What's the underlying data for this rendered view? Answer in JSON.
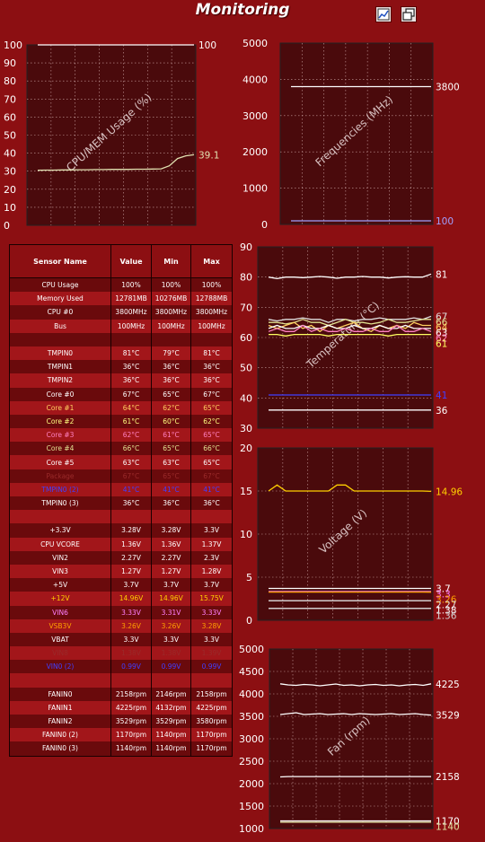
{
  "window": {
    "title": "Monitoring",
    "buttons": [
      {
        "name": "chart-view-button",
        "icon": "line-chart-icon"
      },
      {
        "name": "restore-window-button",
        "icon": "restore-window-icon"
      }
    ]
  },
  "colors": {
    "background": "#8c0f12",
    "plot_bg": "#4a0a0c",
    "row_dark": "#6a0a0c",
    "row_light": "#a2161a"
  },
  "table": {
    "headers": [
      "Sensor Name",
      "Value",
      "Min",
      "Max"
    ],
    "rows": [
      {
        "name": "CPU Usage",
        "value": "100%",
        "min": "100%",
        "max": "100%",
        "color": "#ffffff"
      },
      {
        "name": "Memory Used",
        "value": "12781MB",
        "min": "10276MB",
        "max": "12788MB",
        "color": "#ffffff"
      },
      {
        "name": "CPU #0",
        "value": "3800MHz",
        "min": "3800MHz",
        "max": "3800MHz",
        "color": "#ffffff"
      },
      {
        "name": "Bus",
        "value": "100MHz",
        "min": "100MHz",
        "max": "100MHz",
        "color": "#ffffff"
      },
      {
        "name": "",
        "value": "",
        "min": "",
        "max": "",
        "color": "#ffffff"
      },
      {
        "name": "TMPIN0",
        "value": "81°C",
        "min": "79°C",
        "max": "81°C",
        "color": "#ffffff"
      },
      {
        "name": "TMPIN1",
        "value": "36°C",
        "min": "36°C",
        "max": "36°C",
        "color": "#ffffff"
      },
      {
        "name": "TMPIN2",
        "value": "36°C",
        "min": "36°C",
        "max": "36°C",
        "color": "#ffffff"
      },
      {
        "name": "Core #0",
        "value": "67°C",
        "min": "65°C",
        "max": "67°C",
        "color": "#ffffff"
      },
      {
        "name": "Core #1",
        "value": "64°C",
        "min": "62°C",
        "max": "65°C",
        "color": "#ffd060"
      },
      {
        "name": "Core #2",
        "value": "61°C",
        "min": "60°C",
        "max": "62°C",
        "color": "#ffff80"
      },
      {
        "name": "Core #3",
        "value": "62°C",
        "min": "61°C",
        "max": "65°C",
        "color": "#ff80c0"
      },
      {
        "name": "Core #4",
        "value": "66°C",
        "min": "65°C",
        "max": "66°C",
        "color": "#e0e090"
      },
      {
        "name": "Core #5",
        "value": "63°C",
        "min": "63°C",
        "max": "65°C",
        "color": "#ffffff"
      },
      {
        "name": "Package",
        "value": "67°C",
        "min": "65°C",
        "max": "67°C",
        "color": "#9a2a2a"
      },
      {
        "name": "TMPIN0 (2)",
        "value": "41°C",
        "min": "41°C",
        "max": "41°C",
        "color": "#4040ff"
      },
      {
        "name": "TMPIN0 (3)",
        "value": "36°C",
        "min": "36°C",
        "max": "36°C",
        "color": "#ffffff"
      },
      {
        "name": "",
        "value": "",
        "min": "",
        "max": "",
        "color": "#ffffff"
      },
      {
        "name": "+3.3V",
        "value": "3.28V",
        "min": "3.28V",
        "max": "3.3V",
        "color": "#ffffff"
      },
      {
        "name": "CPU VCORE",
        "value": "1.36V",
        "min": "1.36V",
        "max": "1.37V",
        "color": "#ffffff"
      },
      {
        "name": "VIN2",
        "value": "2.27V",
        "min": "2.27V",
        "max": "2.3V",
        "color": "#ffffff"
      },
      {
        "name": "VIN3",
        "value": "1.27V",
        "min": "1.27V",
        "max": "1.28V",
        "color": "#ffffff"
      },
      {
        "name": "+5V",
        "value": "3.7V",
        "min": "3.7V",
        "max": "3.7V",
        "color": "#ffffff"
      },
      {
        "name": "+12V",
        "value": "14.96V",
        "min": "14.96V",
        "max": "15.75V",
        "color": "#ffd000"
      },
      {
        "name": "VIN6",
        "value": "3.33V",
        "min": "3.31V",
        "max": "3.33V",
        "color": "#ff80ff"
      },
      {
        "name": "VSB3V",
        "value": "3.26V",
        "min": "3.26V",
        "max": "3.28V",
        "color": "#ffa000"
      },
      {
        "name": "VBAT",
        "value": "3.3V",
        "min": "3.3V",
        "max": "3.3V",
        "color": "#ffffff"
      },
      {
        "name": "VIN8",
        "value": "1.38V",
        "min": "1.38V",
        "max": "1.39V",
        "color": "#9a2a2a"
      },
      {
        "name": "VIN0 (2)",
        "value": "0.99V",
        "min": "0.99V",
        "max": "0.99V",
        "color": "#4040ff"
      },
      {
        "name": "",
        "value": "",
        "min": "",
        "max": "",
        "color": "#ffffff"
      },
      {
        "name": "FANIN0",
        "value": "2158rpm",
        "min": "2146rpm",
        "max": "2158rpm",
        "color": "#ffffff"
      },
      {
        "name": "FANIN1",
        "value": "4225rpm",
        "min": "4132rpm",
        "max": "4225rpm",
        "color": "#ffffff"
      },
      {
        "name": "FANIN2",
        "value": "3529rpm",
        "min": "3529rpm",
        "max": "3580rpm",
        "color": "#ffffff"
      },
      {
        "name": "FANIN0 (2)",
        "value": "1170rpm",
        "min": "1140rpm",
        "max": "1170rpm",
        "color": "#ffffff"
      },
      {
        "name": "FANIN0 (3)",
        "value": "1140rpm",
        "min": "1140rpm",
        "max": "1170rpm",
        "color": "#ffffff"
      }
    ]
  },
  "chart_data": [
    {
      "id": "cpu-mem",
      "type": "line",
      "title": "CPU/MEM Usage (%)",
      "ylim": [
        0,
        100
      ],
      "yticks": [
        "0",
        "10",
        "20",
        "30",
        "40",
        "50",
        "60",
        "70",
        "80",
        "90",
        "100"
      ],
      "grid": true,
      "series": [
        {
          "color": "#ffffff",
          "values": [
            100,
            100,
            100,
            100,
            100,
            100,
            100,
            100,
            100,
            100,
            100,
            100,
            100,
            100,
            100,
            100,
            100,
            100,
            100,
            100
          ],
          "end_label": "100"
        },
        {
          "color": "#e0e0b0",
          "values": [
            30.5,
            30.6,
            30.6,
            30.7,
            30.7,
            30.8,
            30.8,
            30.9,
            30.9,
            31,
            31,
            31,
            31.1,
            31.1,
            31.2,
            31.3,
            33,
            37,
            38.5,
            39.1
          ],
          "end_label": "39.1"
        }
      ]
    },
    {
      "id": "frequencies",
      "type": "line",
      "title": "Frequencies (MHz)",
      "ylim": [
        0,
        5000
      ],
      "yticks": [
        "0",
        "1000",
        "2000",
        "3000",
        "4000",
        "5000"
      ],
      "grid": true,
      "series": [
        {
          "color": "#ffffff",
          "values": [
            3800,
            3800,
            3800,
            3800,
            3800,
            3800,
            3800,
            3800,
            3800,
            3800,
            3800,
            3800,
            3800,
            3800,
            3800,
            3800,
            3800,
            3800,
            3800,
            3800
          ],
          "end_label": "3800"
        },
        {
          "color": "#a0a0ff",
          "values": [
            100,
            100,
            100,
            100,
            100,
            100,
            100,
            100,
            100,
            100,
            100,
            100,
            100,
            100,
            100,
            100,
            100,
            100,
            100,
            100
          ],
          "end_label": "100"
        }
      ]
    },
    {
      "id": "temperature",
      "type": "line",
      "title": "Temperature (°C)",
      "ylim": [
        30,
        90
      ],
      "yticks": [
        "30",
        "40",
        "50",
        "60",
        "70",
        "80",
        "90"
      ],
      "grid": true,
      "series": [
        {
          "color": "#ffffff",
          "values": [
            80,
            79.5,
            80,
            80,
            79.8,
            80,
            80.2,
            80,
            79.6,
            80,
            80,
            80.2,
            80,
            80,
            79.7,
            80,
            80.1,
            80,
            80,
            81
          ],
          "end_label": "81"
        },
        {
          "color": "#e0e0e0",
          "values": [
            66,
            65.5,
            66,
            66,
            66.5,
            66,
            66,
            65,
            66,
            66,
            65.5,
            66,
            66,
            66.5,
            66,
            66,
            66,
            66.5,
            66,
            67
          ],
          "end_label": "67"
        },
        {
          "color": "#e0e090",
          "values": [
            65,
            65,
            64.5,
            65,
            66,
            65,
            65,
            64,
            65,
            66,
            65,
            65,
            64.5,
            65,
            66,
            65,
            65,
            65.5,
            66,
            66
          ],
          "end_label": "66"
        },
        {
          "color": "#ffd060",
          "values": [
            64,
            63,
            64,
            65,
            63,
            64,
            62,
            64,
            63,
            64,
            65,
            63,
            62,
            64,
            63,
            64,
            63,
            65,
            64,
            64
          ],
          "end_label": "64"
        },
        {
          "color": "#ffffff",
          "values": [
            63,
            64,
            63,
            63,
            64,
            63,
            63,
            64,
            63,
            63,
            64,
            63,
            63,
            64,
            63,
            63,
            64,
            63,
            63,
            63
          ],
          "end_label": "63"
        },
        {
          "color": "#ff80c0",
          "values": [
            62,
            63,
            62,
            62,
            64,
            62,
            63,
            62,
            62,
            63,
            62,
            62,
            63,
            62,
            62,
            64,
            62,
            62,
            63,
            62
          ],
          "end_label": "62"
        },
        {
          "color": "#ffff60",
          "values": [
            61,
            61,
            60.5,
            61,
            61,
            61,
            61,
            60.5,
            61,
            61,
            61,
            61,
            61,
            61,
            60.5,
            61,
            61,
            61,
            61,
            61
          ],
          "end_label": "61"
        },
        {
          "color": "#4040ff",
          "values": [
            41,
            41,
            41,
            41,
            41,
            41,
            41,
            41,
            41,
            41,
            41,
            41,
            41,
            41,
            41,
            41,
            41,
            41,
            41,
            41
          ],
          "end_label": "41"
        },
        {
          "color": "#ffffff",
          "values": [
            36,
            36,
            36,
            36,
            36,
            36,
            36,
            36,
            36,
            36,
            36,
            36,
            36,
            36,
            36,
            36,
            36,
            36,
            36,
            36
          ],
          "end_label": "36"
        }
      ]
    },
    {
      "id": "voltage",
      "type": "line",
      "title": "Voltage (V)",
      "ylim": [
        0,
        20
      ],
      "yticks": [
        "0",
        "5",
        "10",
        "15",
        "20"
      ],
      "grid": true,
      "series": [
        {
          "color": "#ffd000",
          "values": [
            15,
            15.7,
            15,
            15,
            15,
            15,
            15,
            15,
            15.7,
            15.7,
            15,
            15,
            15,
            15,
            15,
            15,
            15,
            15,
            15,
            14.96
          ],
          "end_label": "14.96"
        },
        {
          "color": "#ffffff",
          "values": [
            3.7,
            3.7,
            3.7,
            3.7,
            3.7,
            3.7,
            3.7,
            3.7,
            3.7,
            3.7,
            3.7,
            3.7,
            3.7,
            3.7,
            3.7,
            3.7,
            3.7,
            3.7,
            3.7,
            3.7
          ],
          "end_label": "3.7"
        },
        {
          "color": "#ff80ff",
          "values": [
            3.33,
            3.33,
            3.33,
            3.33,
            3.33,
            3.33,
            3.33,
            3.33,
            3.33,
            3.33,
            3.33,
            3.33,
            3.33,
            3.33,
            3.33,
            3.33,
            3.33,
            3.33,
            3.33,
            3.33
          ],
          "end_label": "3.3"
        },
        {
          "color": "#ffa000",
          "values": [
            3.27,
            3.27,
            3.27,
            3.27,
            3.27,
            3.27,
            3.27,
            3.27,
            3.27,
            3.27,
            3.27,
            3.27,
            3.27,
            3.27,
            3.27,
            3.27,
            3.27,
            3.27,
            3.27,
            3.26
          ],
          "end_label": "3.26"
        },
        {
          "color": "#e0e0e0",
          "values": [
            2.27,
            2.27,
            2.27,
            2.27,
            2.27,
            2.27,
            2.27,
            2.27,
            2.27,
            2.27,
            2.27,
            2.27,
            2.27,
            2.27,
            2.27,
            2.27,
            2.27,
            2.27,
            2.27,
            2.27
          ],
          "end_label": "2.27"
        },
        {
          "color": "#ffffff",
          "values": [
            1.38,
            1.38,
            1.38,
            1.38,
            1.38,
            1.38,
            1.38,
            1.38,
            1.38,
            1.38,
            1.38,
            1.38,
            1.38,
            1.38,
            1.38,
            1.38,
            1.38,
            1.38,
            1.38,
            1.38
          ],
          "end_label": "1.38"
        },
        {
          "color": "#d0d0d0",
          "values": [
            1.36,
            1.36,
            1.36,
            1.36,
            1.36,
            1.36,
            1.36,
            1.36,
            1.36,
            1.36,
            1.36,
            1.36,
            1.36,
            1.36,
            1.36,
            1.36,
            1.36,
            1.36,
            1.36,
            1.36
          ],
          "end_label": "1.36"
        }
      ]
    },
    {
      "id": "fan",
      "type": "line",
      "title": "Fan (rpm)",
      "ylim": [
        1000,
        5000
      ],
      "yticks": [
        "1000",
        "1500",
        "2000",
        "2500",
        "3000",
        "3500",
        "4000",
        "4500",
        "5000"
      ],
      "grid": true,
      "series": [
        {
          "color": "#ffffff",
          "values": [
            4225,
            4200,
            4190,
            4210,
            4200,
            4180,
            4200,
            4220,
            4190,
            4200,
            4180,
            4200,
            4210,
            4190,
            4200,
            4180,
            4200,
            4210,
            4190,
            4225
          ],
          "end_label": "4225"
        },
        {
          "color": "#ffffff",
          "values": [
            3540,
            3560,
            3580,
            3540,
            3550,
            3560,
            3540,
            3550,
            3560,
            3540,
            3560,
            3550,
            3540,
            3550,
            3560,
            3540,
            3550,
            3560,
            3540,
            3529
          ],
          "end_label": "3529"
        },
        {
          "color": "#ffffff",
          "values": [
            2150,
            2158,
            2158,
            2158,
            2158,
            2158,
            2158,
            2158,
            2158,
            2158,
            2158,
            2158,
            2158,
            2158,
            2158,
            2158,
            2158,
            2158,
            2158,
            2158
          ],
          "end_label": "2158"
        },
        {
          "color": "#ffffff",
          "values": [
            1170,
            1170,
            1170,
            1170,
            1170,
            1170,
            1170,
            1170,
            1170,
            1170,
            1170,
            1170,
            1170,
            1170,
            1170,
            1170,
            1170,
            1170,
            1170,
            1170
          ],
          "end_label": "1170"
        },
        {
          "color": "#e0e0a0",
          "values": [
            1140,
            1140,
            1140,
            1140,
            1140,
            1140,
            1140,
            1140,
            1140,
            1140,
            1140,
            1140,
            1140,
            1140,
            1140,
            1140,
            1140,
            1140,
            1140,
            1140
          ],
          "end_label": "1140"
        }
      ]
    }
  ]
}
